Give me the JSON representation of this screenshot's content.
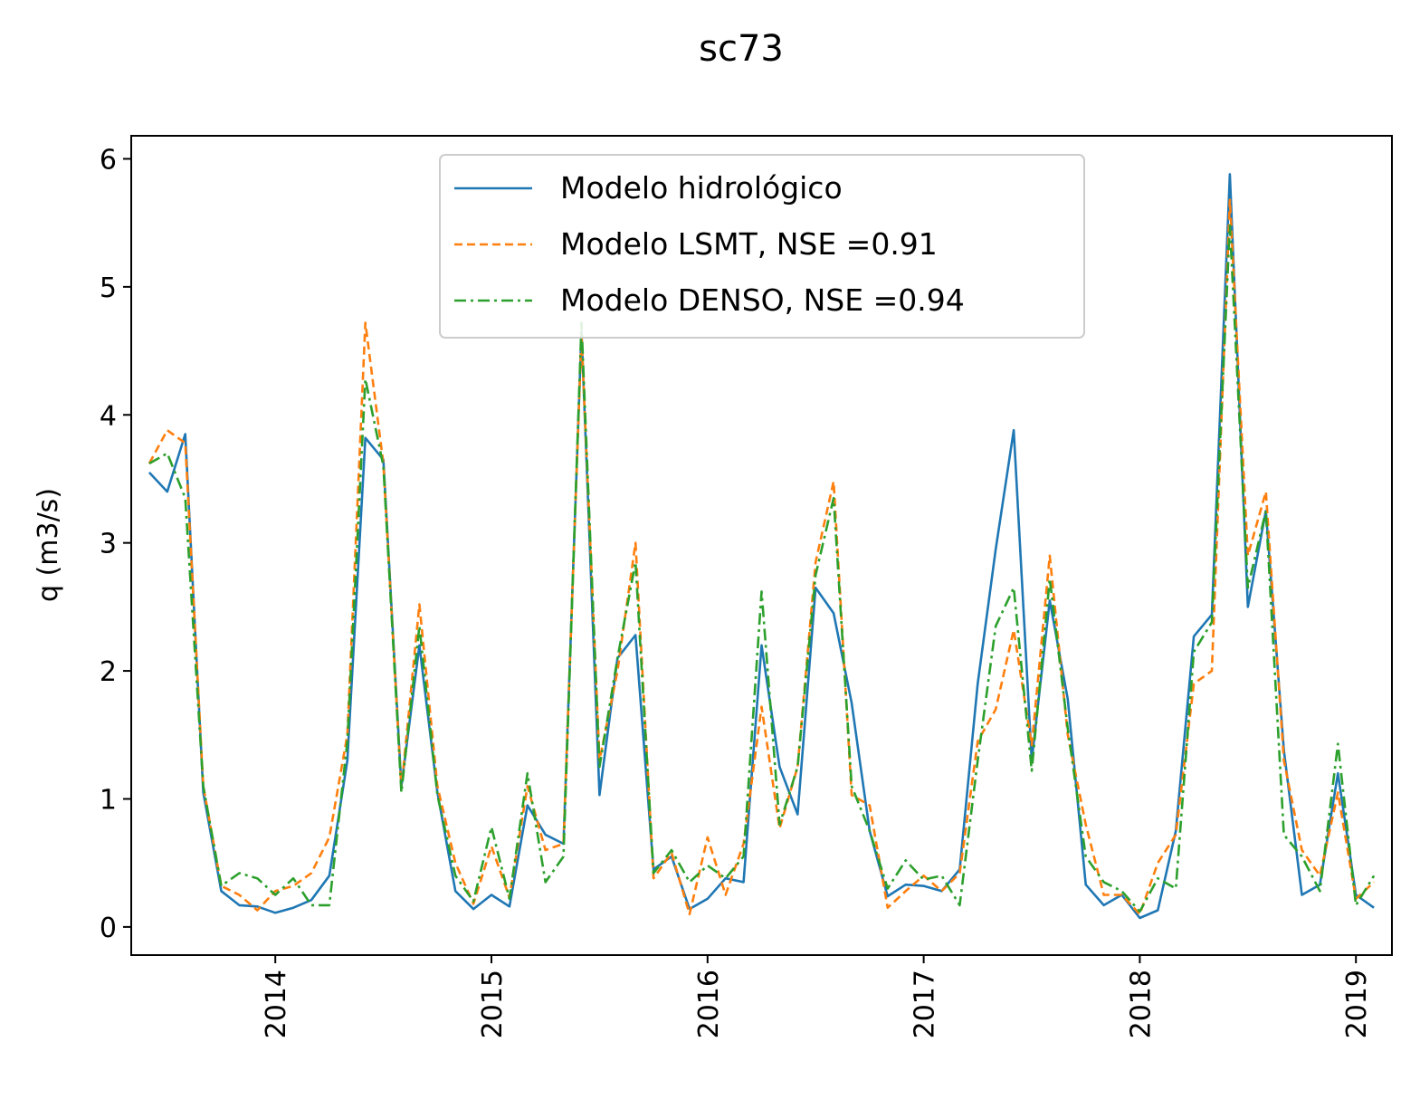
{
  "chart_data": {
    "type": "line",
    "title": "sc73",
    "xlabel": "",
    "ylabel": "q (m3/s)",
    "xlim": [
      "2013-05-01",
      "2019-03-01"
    ],
    "ylim": [
      -0.22,
      6.18
    ],
    "grid": false,
    "legend_position": "top-center",
    "x_ticks": [
      "2014",
      "2015",
      "2016",
      "2017",
      "2018",
      "2019"
    ],
    "y_ticks": [
      "0",
      "1",
      "2",
      "3",
      "4",
      "5",
      "6"
    ],
    "x": [
      "2013-06",
      "2013-07",
      "2013-08",
      "2013-09",
      "2013-10",
      "2013-11",
      "2013-12",
      "2014-01",
      "2014-02",
      "2014-03",
      "2014-04",
      "2014-05",
      "2014-06",
      "2014-07",
      "2014-08",
      "2014-09",
      "2014-10",
      "2014-11",
      "2014-12",
      "2015-01",
      "2015-02",
      "2015-03",
      "2015-04",
      "2015-05",
      "2015-06",
      "2015-07",
      "2015-08",
      "2015-09",
      "2015-10",
      "2015-11",
      "2015-12",
      "2016-01",
      "2016-02",
      "2016-03",
      "2016-04",
      "2016-05",
      "2016-06",
      "2016-07",
      "2016-08",
      "2016-09",
      "2016-10",
      "2016-11",
      "2016-12",
      "2017-01",
      "2017-02",
      "2017-03",
      "2017-04",
      "2017-05",
      "2017-06",
      "2017-07",
      "2017-08",
      "2017-09",
      "2017-10",
      "2017-11",
      "2017-12",
      "2018-01",
      "2018-02",
      "2018-03",
      "2018-04",
      "2018-05",
      "2018-06",
      "2018-07",
      "2018-08",
      "2018-09",
      "2018-10",
      "2018-11",
      "2018-12",
      "2019-01",
      "2019-02"
    ],
    "series": [
      {
        "name": "Modelo hidrológico",
        "color": "#1f77b4",
        "style": "solid",
        "values": [
          3.55,
          3.4,
          3.85,
          1.05,
          0.28,
          0.17,
          0.16,
          0.11,
          0.15,
          0.21,
          0.4,
          1.3,
          3.82,
          3.65,
          1.1,
          2.2,
          1.05,
          0.28,
          0.14,
          0.25,
          0.16,
          0.95,
          0.72,
          0.65,
          4.65,
          1.03,
          2.1,
          2.28,
          0.45,
          0.55,
          0.14,
          0.22,
          0.38,
          0.35,
          2.2,
          1.25,
          0.88,
          2.65,
          2.45,
          1.75,
          0.75,
          0.24,
          0.33,
          0.32,
          0.28,
          0.45,
          1.9,
          2.95,
          3.88,
          1.3,
          2.55,
          1.78,
          0.33,
          0.17,
          0.25,
          0.07,
          0.13,
          0.75,
          2.27,
          2.44,
          5.88,
          2.5,
          3.25,
          1.38,
          0.25,
          0.33,
          1.2,
          0.25,
          0.15
        ]
      },
      {
        "name": "Modelo LSMT, NSE =0.91",
        "color": "#ff7f0e",
        "style": "dashed",
        "values": [
          3.62,
          3.88,
          3.78,
          1.1,
          0.32,
          0.25,
          0.13,
          0.28,
          0.32,
          0.42,
          0.7,
          1.5,
          4.72,
          3.62,
          1.08,
          2.52,
          1.1,
          0.5,
          0.18,
          0.63,
          0.23,
          1.1,
          0.6,
          0.65,
          4.62,
          1.3,
          2.0,
          3.0,
          0.38,
          0.58,
          0.1,
          0.7,
          0.25,
          0.65,
          1.72,
          0.77,
          1.25,
          2.85,
          3.48,
          1.03,
          0.95,
          0.15,
          0.28,
          0.4,
          0.28,
          0.42,
          1.45,
          1.7,
          2.32,
          1.42,
          2.9,
          1.5,
          0.8,
          0.25,
          0.25,
          0.1,
          0.5,
          0.72,
          1.9,
          2.0,
          5.68,
          2.9,
          3.4,
          1.3,
          0.6,
          0.4,
          1.05,
          0.22,
          0.35
        ]
      },
      {
        "name": "Modelo DENSO, NSE =0.94",
        "color": "#2ca02c",
        "style": "dashdot",
        "values": [
          3.62,
          3.7,
          3.35,
          1.1,
          0.32,
          0.42,
          0.38,
          0.25,
          0.38,
          0.17,
          0.17,
          1.45,
          4.28,
          3.6,
          1.05,
          2.35,
          1.03,
          0.4,
          0.2,
          0.78,
          0.22,
          1.2,
          0.35,
          0.55,
          4.72,
          1.25,
          2.1,
          2.85,
          0.42,
          0.6,
          0.35,
          0.48,
          0.38,
          0.55,
          2.62,
          0.8,
          1.25,
          2.75,
          3.35,
          1.1,
          0.75,
          0.3,
          0.52,
          0.37,
          0.4,
          0.17,
          1.3,
          2.35,
          2.65,
          1.22,
          2.72,
          1.55,
          0.55,
          0.35,
          0.28,
          0.12,
          0.38,
          0.3,
          2.15,
          2.38,
          5.48,
          2.65,
          3.25,
          0.72,
          0.55,
          0.28,
          1.43,
          0.17,
          0.4
        ]
      }
    ]
  }
}
